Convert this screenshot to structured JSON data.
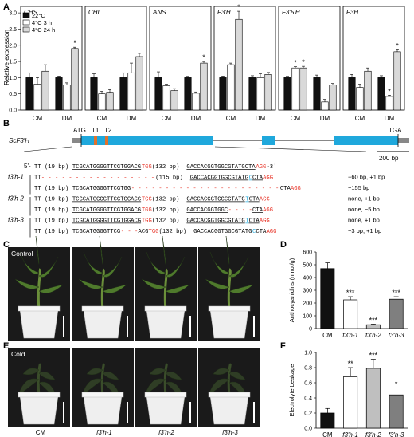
{
  "panel_labels": {
    "a": "A",
    "b": "B",
    "c": "C",
    "d": "D",
    "e": "E",
    "f": "F"
  },
  "panel_a": {
    "ylabel": "Relative expression",
    "legend": [
      "22°C",
      "4°C 3 h",
      "4°C 24 h"
    ],
    "series_colors": [
      "#111111",
      "#ffffff",
      "#d9d9d9"
    ],
    "y_ticks": [
      "0.0",
      "0.5",
      "1.0",
      "1.5",
      "2.0",
      "2.5",
      "3.0"
    ],
    "group_labels": [
      "CM",
      "DM"
    ],
    "star": "*"
  },
  "chart_data": [
    {
      "type": "bar",
      "title": "CHS",
      "categories": [
        "CM",
        "DM"
      ],
      "ylim": [
        0,
        3.2
      ],
      "series": [
        {
          "name": "22°C",
          "values": [
            1.0,
            1.0
          ],
          "err": [
            0.15,
            0.05
          ]
        },
        {
          "name": "4°C 3 h",
          "values": [
            0.8,
            0.78
          ],
          "err": [
            0.2,
            0.06
          ]
        },
        {
          "name": "4°C 24 h",
          "values": [
            1.2,
            1.9
          ],
          "err": [
            0.2,
            0.04
          ]
        }
      ],
      "sig": [
        [
          "DM",
          "4°C 24 h"
        ]
      ]
    },
    {
      "type": "bar",
      "title": "CHI",
      "categories": [
        "CM",
        "DM"
      ],
      "ylim": [
        0,
        3.2
      ],
      "series": [
        {
          "name": "22°C",
          "values": [
            1.0,
            1.0
          ],
          "err": [
            0.12,
            0.15
          ]
        },
        {
          "name": "4°C 3 h",
          "values": [
            0.5,
            1.15
          ],
          "err": [
            0.08,
            0.3
          ]
        },
        {
          "name": "4°C 24 h",
          "values": [
            0.55,
            1.65
          ],
          "err": [
            0.08,
            0.1
          ]
        }
      ],
      "sig": []
    },
    {
      "type": "bar",
      "title": "ANS",
      "categories": [
        "CM",
        "DM"
      ],
      "ylim": [
        0,
        3.2
      ],
      "series": [
        {
          "name": "22°C",
          "values": [
            1.0,
            1.0
          ],
          "err": [
            0.18,
            0.04
          ]
        },
        {
          "name": "4°C 3 h",
          "values": [
            0.75,
            0.52
          ],
          "err": [
            0.05,
            0.04
          ]
        },
        {
          "name": "4°C 24 h",
          "values": [
            0.6,
            1.45
          ],
          "err": [
            0.06,
            0.05
          ]
        }
      ],
      "sig": [
        [
          "DM",
          "4°C 24 h"
        ]
      ]
    },
    {
      "type": "bar",
      "title": "F3'H",
      "categories": [
        "CM",
        "DM"
      ],
      "ylim": [
        0,
        3.2
      ],
      "series": [
        {
          "name": "22°C",
          "values": [
            1.0,
            1.0
          ],
          "err": [
            0.05,
            0.06
          ]
        },
        {
          "name": "4°C 3 h",
          "values": [
            1.4,
            1.0
          ],
          "err": [
            0.05,
            0.12
          ]
        },
        {
          "name": "4°C 24 h",
          "values": [
            2.8,
            1.1
          ],
          "err": [
            0.25,
            0.06
          ]
        }
      ],
      "sig": [
        [
          "CM",
          "4°C 24 h"
        ]
      ]
    },
    {
      "type": "bar",
      "title": "F3'5'H",
      "categories": [
        "CM",
        "DM"
      ],
      "ylim": [
        0,
        3.2
      ],
      "series": [
        {
          "name": "22°C",
          "values": [
            1.0,
            1.0
          ],
          "err": [
            0.04,
            0.08
          ]
        },
        {
          "name": "4°C 3 h",
          "values": [
            1.3,
            0.25
          ],
          "err": [
            0.04,
            0.08
          ]
        },
        {
          "name": "4°C 24 h",
          "values": [
            1.3,
            0.78
          ],
          "err": [
            0.05,
            0.04
          ]
        }
      ],
      "sig": [
        [
          "CM",
          "4°C 3 h"
        ],
        [
          "CM",
          "4°C 24 h"
        ]
      ]
    },
    {
      "type": "bar",
      "title": "F3H",
      "categories": [
        "CM",
        "DM"
      ],
      "ylim": [
        0,
        3.2
      ],
      "series": [
        {
          "name": "22°C",
          "values": [
            1.0,
            1.0
          ],
          "err": [
            0.1,
            0.06
          ]
        },
        {
          "name": "4°C 3 h",
          "values": [
            0.7,
            0.42
          ],
          "err": [
            0.1,
            0.04
          ]
        },
        {
          "name": "4°C 24 h",
          "values": [
            1.2,
            1.8
          ],
          "err": [
            0.1,
            0.06
          ]
        }
      ],
      "sig": [
        [
          "DM",
          "4°C 3 h"
        ],
        [
          "DM",
          "4°C 24 h"
        ]
      ]
    },
    {
      "type": "bar",
      "title": "",
      "ylabel": "Anthocyanidins (nmol/g)",
      "categories": [
        "CM",
        "f3'h-1",
        "f3'h-2",
        "f3'h-3"
      ],
      "values": [
        470,
        225,
        30,
        230
      ],
      "err": [
        45,
        25,
        5,
        20
      ],
      "sig": [
        "",
        "***",
        "***",
        "***"
      ],
      "colors": [
        "#111111",
        "#ffffff",
        "#bfbfbf",
        "#7f7f7f"
      ],
      "y_ticks": [
        "0",
        "100",
        "200",
        "300",
        "400",
        "500",
        "600"
      ],
      "ylim": [
        0,
        600
      ]
    },
    {
      "type": "bar",
      "title": "",
      "ylabel": "Electrolyte Leakage",
      "categories": [
        "CM",
        "f3'h-1",
        "f3'h-2",
        "f3'h-3"
      ],
      "values": [
        0.2,
        0.68,
        0.79,
        0.44
      ],
      "err": [
        0.06,
        0.12,
        0.12,
        0.09
      ],
      "sig": [
        "",
        "**",
        "***",
        "*"
      ],
      "colors": [
        "#111111",
        "#ffffff",
        "#bfbfbf",
        "#7f7f7f"
      ],
      "y_ticks": [
        "0.0",
        "0.2",
        "0.4",
        "0.6",
        "0.8",
        "1.0"
      ],
      "ylim": [
        0,
        1.0
      ]
    }
  ],
  "panel_b": {
    "gene": "ScF3'H",
    "atg": "ATG",
    "t1": "T1",
    "t2": "T2",
    "tga": "TGA",
    "scale": "200 bp",
    "colors": {
      "exon": "#1fa8dc",
      "utr": "#888888",
      "target": "#e0722c",
      "pam": "#e8372b",
      "ins": "#1fa8dc"
    },
    "rows": [
      {
        "label": "5'-",
        "seq": [
          [
            "TT (19 bp) ",
            "n"
          ],
          [
            "TCGCATGGGGTTCGTGGACG",
            "u"
          ],
          [
            "TGG",
            "r"
          ],
          [
            " (132 bp) ",
            "n"
          ],
          [
            "GACCACGGTGGCGTATGCTA",
            "u"
          ],
          [
            "AGG",
            "r"
          ],
          [
            " -3'",
            "n"
          ]
        ],
        "note": ""
      },
      {
        "label": "f3'h-1",
        "seq": [
          [
            "TT",
            "n"
          ],
          [
            "- - - - - - - - - - - - - - - - -",
            "d"
          ],
          [
            " (115 bp) ",
            "n"
          ],
          [
            "GACCACGGTGGCGTATG",
            "u"
          ],
          [
            "C",
            "b"
          ],
          [
            "CTA",
            "u"
          ],
          [
            "AGG",
            "r"
          ]
        ],
        "note": "−60 bp, +1 bp"
      },
      {
        "label": "",
        "seq": [
          [
            "TT (19 bp) ",
            "n"
          ],
          [
            "TCGCATGGGGTTCGTGG",
            "u"
          ],
          [
            "- - - - - - - - - - - - - - - - - - - - - -",
            "d"
          ],
          [
            "CTA",
            "u"
          ],
          [
            "AGG",
            "r"
          ]
        ],
        "note": "−155 bp"
      },
      {
        "label": "f3'h-2",
        "seq": [
          [
            "TT (19 bp) ",
            "n"
          ],
          [
            "TCGCATGGGGTTCGTGGACG",
            "u"
          ],
          [
            "TGG",
            "r"
          ],
          [
            " (132 bp) ",
            "n"
          ],
          [
            "GACCACGGTGGCGTATG",
            "u"
          ],
          [
            "T",
            "b"
          ],
          [
            "CTA",
            "u"
          ],
          [
            "AGG",
            "r"
          ]
        ],
        "note": "none, +1 bp"
      },
      {
        "label": "",
        "seq": [
          [
            "TT (19 bp) ",
            "n"
          ],
          [
            "TCGCATGGGGTTCGTGGACG",
            "u"
          ],
          [
            "TGG",
            "r"
          ],
          [
            " (132 bp) ",
            "n"
          ],
          [
            "GACCACGGTGGC",
            "u"
          ],
          [
            "- - - -",
            "d"
          ],
          [
            "CTA",
            "u"
          ],
          [
            "AGG",
            "r"
          ]
        ],
        "note": "none, −5 bp"
      },
      {
        "label": "f3'h-3",
        "seq": [
          [
            "TT (19 bp) ",
            "n"
          ],
          [
            "TCGCATGGGGTTCGTGGACG",
            "u"
          ],
          [
            "TGG",
            "r"
          ],
          [
            " (132 bp) ",
            "n"
          ],
          [
            "GACCACGGTGGCGTATG",
            "u"
          ],
          [
            "T",
            "b"
          ],
          [
            "CTA",
            "u"
          ],
          [
            "AGG",
            "r"
          ]
        ],
        "note": "none, +1 bp"
      },
      {
        "label": "",
        "seq": [
          [
            "TT (19 bp) ",
            "n"
          ],
          [
            "TCGCATGGGGTTCG",
            "u"
          ],
          [
            "- - -",
            "d"
          ],
          [
            "ACG",
            "u"
          ],
          [
            "TGG",
            "r"
          ],
          [
            " (132 bp) ",
            "n"
          ],
          [
            "GACCACGGTGGCGTATG",
            "u"
          ],
          [
            "C",
            "b"
          ],
          [
            "CTA",
            "u"
          ],
          [
            "AGG",
            "r"
          ]
        ],
        "note": "−3 bp, +1 bp"
      }
    ]
  },
  "panel_c": {
    "condition": "Control"
  },
  "panel_e": {
    "condition": "Cold",
    "labels": [
      "CM",
      "f3'h-1",
      "f3'h-2",
      "f3'h-3"
    ]
  }
}
